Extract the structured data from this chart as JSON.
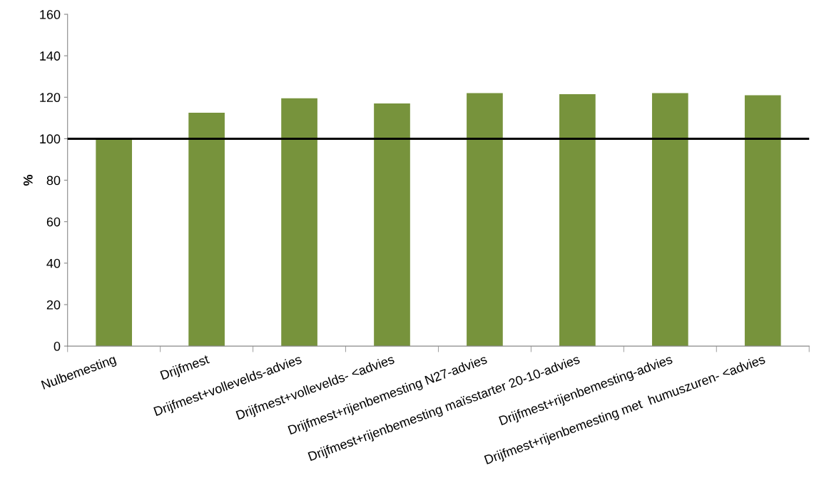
{
  "chart_data": {
    "type": "bar",
    "ylabel": "%",
    "categories": [
      "Nulbemesting",
      "Drijfmest",
      "Drijfmest+vollevelds-advies",
      "Drijfmest+vollevelds- <advies",
      "Drijfmest+rijenbemesting N27-advies",
      "Drijfmest+rijenbemesting maïsstarter 20-10-advies",
      "Drijfmest+rijenbemesting-advies",
      "Drijfmest+rijenbemesting met  humuszuren- <advies"
    ],
    "values": [
      100,
      112.5,
      119.5,
      117,
      122,
      121.5,
      122,
      121
    ],
    "color": "#77933c",
    "ylim": [
      0,
      160
    ],
    "yticks": [
      0,
      20,
      40,
      60,
      80,
      100,
      120,
      140,
      160
    ],
    "ref_lines": [
      {
        "axis": "y",
        "value": 100,
        "color": "#000000"
      }
    ]
  }
}
